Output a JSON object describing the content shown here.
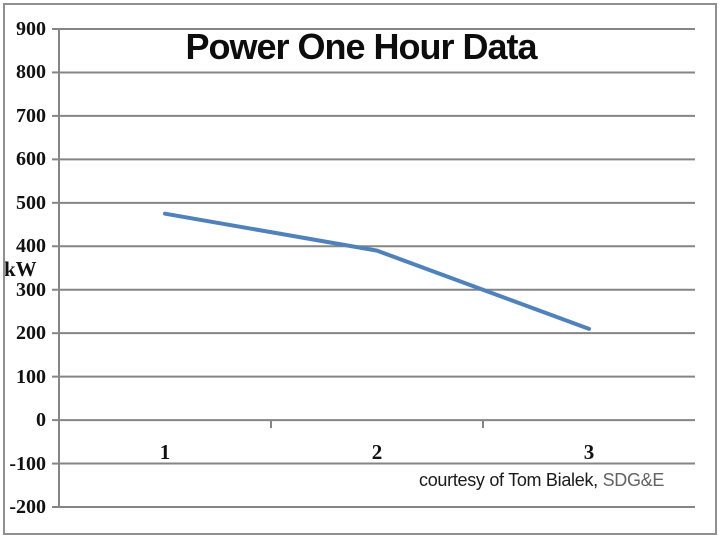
{
  "frame": {
    "background": "#ffffff",
    "border_color": "#909090"
  },
  "chart_data": {
    "type": "line",
    "title": "Power One Hour Data",
    "categories": [
      "1",
      "2",
      "3"
    ],
    "values": [
      475,
      390,
      210
    ],
    "xlabel": "",
    "ylabel": "kW",
    "ylim": [
      -200,
      900
    ],
    "ytick_step": 100,
    "ytick_labels": [
      "900",
      "800",
      "700",
      "600",
      "500",
      "400",
      "300",
      "200",
      "100",
      "0",
      "-100",
      "-200"
    ],
    "grid": true,
    "legend": "none",
    "line_color": "#4f81bd",
    "gridline_color": "#858585"
  },
  "caption": {
    "prefix": "courtesy of Tom Bialek,",
    "org": "SDG&E"
  }
}
